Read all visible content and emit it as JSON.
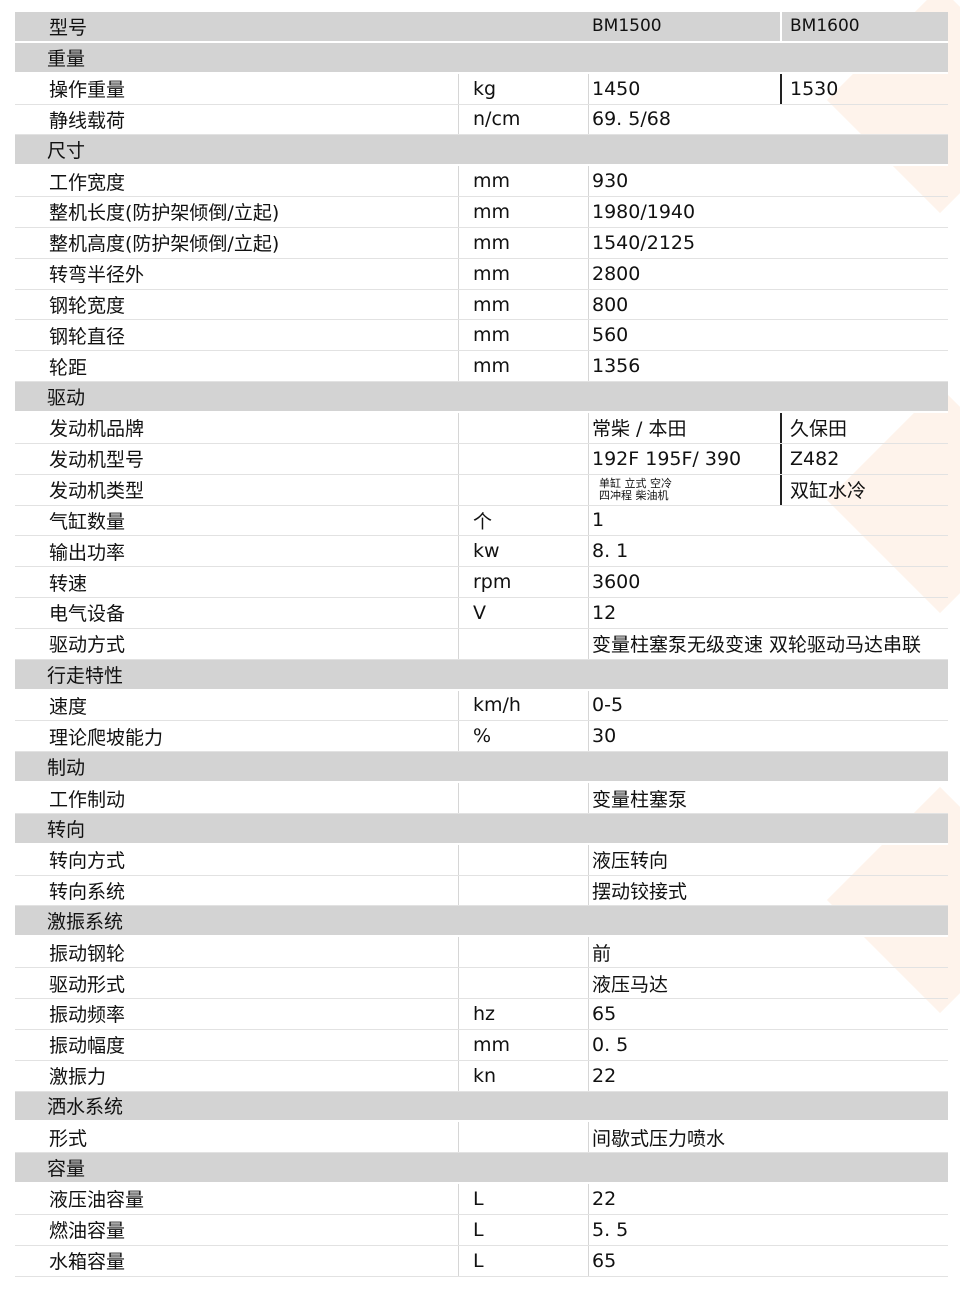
{
  "header": {
    "label": "型号",
    "model1": "BM1500",
    "model2": "BM1600"
  },
  "sections": [
    {
      "title": "重量",
      "rows": [
        {
          "label": "操作重量",
          "unit": "kg",
          "value": "1450",
          "value2": "1530"
        },
        {
          "label": "静线载荷",
          "unit": "n/cm",
          "value": "69. 5/68"
        }
      ]
    },
    {
      "title": "尺寸",
      "rows": [
        {
          "label": "工作宽度",
          "unit": "mm",
          "value": "930"
        },
        {
          "label": "整机长度(防护架倾倒/立起)",
          "unit": "mm",
          "value": "1980/1940"
        },
        {
          "label": "整机高度(防护架倾倒/立起)",
          "unit": "mm",
          "value": "1540/2125"
        },
        {
          "label": "转弯半径外",
          "unit": "mm",
          "value": "2800"
        },
        {
          "label": "钢轮宽度",
          "unit": "mm",
          "value": "800"
        },
        {
          "label": "钢轮直径",
          "unit": "mm",
          "value": "560"
        },
        {
          "label": "轮距",
          "unit": "mm",
          "value": "1356"
        }
      ]
    },
    {
      "title": "驱动",
      "rows": [
        {
          "label": "发动机品牌",
          "unit": "",
          "value": "常柴  / 本田",
          "value2": "久保田"
        },
        {
          "label": "发动机型号",
          "unit": "",
          "value": "192F 195F/  390",
          "value2": "Z482"
        },
        {
          "label": "发动机类型",
          "unit": "",
          "value": "单缸 立式 空冷\n四冲程 柴油机",
          "value_small": true,
          "value2": "双缸水冷"
        },
        {
          "label": "气缸数量",
          "unit": "个",
          "value": "1"
        },
        {
          "label": "输出功率",
          "unit": "kw",
          "value": "8. 1"
        },
        {
          "label": "转速",
          "unit": "rpm",
          "value": "3600"
        },
        {
          "label": "电气设备",
          "unit": "V",
          "value": "12"
        },
        {
          "label": "驱动方式",
          "unit": "",
          "value": "变量柱塞泵无级变速 双轮驱动马达串联",
          "value_wide": true
        }
      ]
    },
    {
      "title": "行走特性",
      "rows": [
        {
          "label": "速度",
          "unit": "km/h",
          "value": "0-5"
        },
        {
          "label": "理论爬坡能力",
          "unit": "%",
          "value": "30"
        }
      ]
    },
    {
      "title": "制动",
      "rows": [
        {
          "label": "工作制动",
          "unit": "",
          "value": "变量柱塞泵"
        }
      ]
    },
    {
      "title": "转向",
      "rows": [
        {
          "label": "转向方式",
          "unit": "",
          "value": "液压转向"
        },
        {
          "label": "转向系统",
          "unit": "",
          "value": "摆动铰接式"
        }
      ]
    },
    {
      "title": "激振系统",
      "rows": [
        {
          "label": "振动钢轮",
          "unit": "",
          "value": "前"
        },
        {
          "label": "驱动形式",
          "unit": "",
          "value": "液压马达"
        },
        {
          "label": "振动频率",
          "unit": "hz",
          "value": "65"
        },
        {
          "label": "振动幅度",
          "unit": "mm",
          "value": "0. 5"
        },
        {
          "label": "激振力",
          "unit": "kn",
          "value": "22"
        }
      ]
    },
    {
      "title": "洒水系统",
      "rows": [
        {
          "label": "形式",
          "unit": "",
          "value": "间歇式压力喷水"
        }
      ]
    },
    {
      "title": "容量",
      "rows": [
        {
          "label": "液压油容量",
          "unit": "L",
          "value": "22"
        },
        {
          "label": "燃油容量",
          "unit": "L",
          "value": "5. 5"
        },
        {
          "label": "水箱容量",
          "unit": "L",
          "value": "65"
        }
      ]
    }
  ]
}
